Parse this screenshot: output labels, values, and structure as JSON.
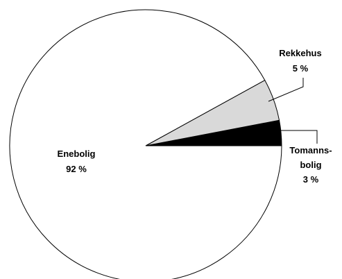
{
  "chart_data": {
    "type": "pie",
    "slices": [
      {
        "label": "Enebolig",
        "value": 92,
        "value_text": "92 %",
        "color": "#ffffff"
      },
      {
        "label": "Rekkehus",
        "value": 5,
        "value_text": "5 %",
        "color": "#d9d9d9"
      },
      {
        "label": "Tomannsbolig",
        "label_line1": "Tomanns-",
        "label_line2": "bolig",
        "value": 3,
        "value_text": "3 %",
        "color": "#000000"
      }
    ],
    "stroke_color": "#000000",
    "legend": "none"
  }
}
